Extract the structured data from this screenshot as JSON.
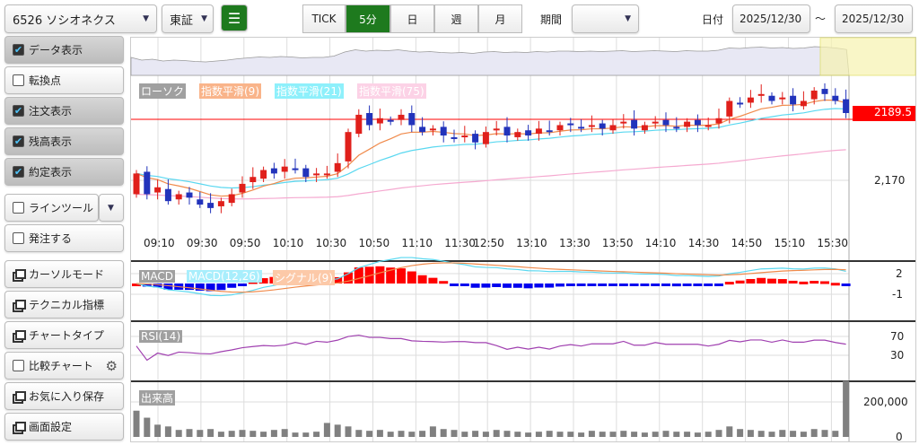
{
  "top": {
    "symbol": "6526 ソシオネクス",
    "market": "東証",
    "intervals": [
      "TICK",
      "5分",
      "日",
      "週",
      "月"
    ],
    "active_interval": "5分",
    "period_label": "期間",
    "period_value": "",
    "date_label": "日付",
    "date_from": "2025/12/30",
    "tilde": "～",
    "date_to": "2025/12/30"
  },
  "side": {
    "items": [
      {
        "label": "データ表示",
        "type": "check",
        "checked": true
      },
      {
        "label": "転換点",
        "type": "check",
        "checked": false
      },
      {
        "label": "注文表示",
        "type": "check",
        "checked": true
      },
      {
        "label": "残高表示",
        "type": "check",
        "checked": true
      },
      {
        "label": "約定表示",
        "type": "check",
        "checked": true
      },
      {
        "label": "ラインツール",
        "type": "check",
        "checked": false
      },
      {
        "label": "発注する",
        "type": "check",
        "checked": false
      },
      {
        "label": "カーソルモード",
        "type": "window"
      },
      {
        "label": "テクニカル指標",
        "type": "window"
      },
      {
        "label": "チャートタイプ",
        "type": "window"
      },
      {
        "label": "比較チャート",
        "type": "check",
        "checked": false
      },
      {
        "label": "お気に入り保存",
        "type": "window"
      },
      {
        "label": "画面設定",
        "type": "window"
      }
    ]
  },
  "chart_data": {
    "type": "candlestick",
    "legend": {
      "candle": "ローソク",
      "ema9": "指数平滑(9)",
      "ema21": "指数平滑(21)",
      "ema75": "指数平滑(75)"
    },
    "colors": {
      "up": "#e0201b",
      "down": "#2233bb",
      "ema9": "#f08a4b",
      "ema21": "#5ad8f0",
      "ema75": "#f5a9d0",
      "accent": "#1e7a1e"
    },
    "time_labels": [
      "09:10",
      "09:30",
      "09:50",
      "10:10",
      "10:30",
      "10:50",
      "11:10",
      "11:30",
      "12:50",
      "13:10",
      "13:30",
      "13:50",
      "14:10",
      "14:30",
      "14:50",
      "15:10",
      "15:30"
    ],
    "price_ticks": [
      "2,170"
    ],
    "current_price": "2189.5",
    "close": [
      2172,
      2166,
      2168,
      2164,
      2166,
      2165,
      2163,
      2162,
      2164,
      2166,
      2169,
      2171,
      2173,
      2172,
      2174,
      2173,
      2171,
      2172,
      2172,
      2175,
      2184,
      2189,
      2186,
      2188,
      2187,
      2189,
      2186,
      2184,
      2185,
      2183,
      2182,
      2183,
      2181,
      2184,
      2185,
      2183,
      2184,
      2183,
      2185,
      2184,
      2186,
      2186,
      2185,
      2186,
      2185,
      2186,
      2187,
      2185,
      2186,
      2187,
      2186,
      2185,
      2187,
      2186,
      2186,
      2188,
      2193,
      2192,
      2194,
      2195,
      2193,
      2194,
      2192,
      2193,
      2196,
      2195,
      2193,
      2189.5
    ],
    "volume": [
      150000,
      110000,
      70000,
      60000,
      40000,
      45000,
      40000,
      45000,
      30000,
      35000,
      40000,
      35000,
      30000,
      40000,
      45000,
      25000,
      25000,
      30000,
      80000,
      70000,
      60000,
      40000,
      35000,
      40000,
      30000,
      35000,
      30000,
      35000,
      60000,
      45000,
      40000,
      30000,
      35000,
      30000,
      40000,
      35000,
      30000,
      25000,
      30000,
      35000,
      30000,
      30000,
      25000,
      35000,
      30000,
      30000,
      35000,
      30000,
      25000,
      30000,
      35000,
      30000,
      30000,
      25000,
      30000,
      40000,
      60000,
      45000,
      40000,
      35000,
      30000,
      40000,
      35000,
      30000,
      45000,
      40000,
      35000,
      320000
    ],
    "macd": {
      "label": "MACD",
      "line": "MACD(12,26)",
      "signal": "シグナル(9)",
      "ticks": [
        "2",
        "-1"
      ]
    },
    "rsi": {
      "label": "RSI(14)",
      "ticks": [
        "70",
        "30"
      ]
    },
    "vol": {
      "label": "出来高",
      "ticks": [
        "200,000",
        "0"
      ]
    }
  }
}
